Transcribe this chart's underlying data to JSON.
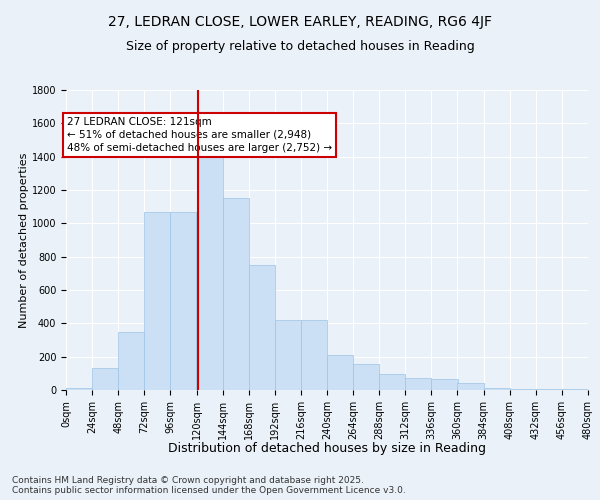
{
  "title": "27, LEDRAN CLOSE, LOWER EARLEY, READING, RG6 4JF",
  "subtitle": "Size of property relative to detached houses in Reading",
  "xlabel": "Distribution of detached houses by size in Reading",
  "ylabel": "Number of detached properties",
  "bar_color": "#cce0f5",
  "bar_edge_color": "#9dc3e6",
  "background_color": "#eaf1f8",
  "grid_color": "#ffffff",
  "bins_left": [
    0,
    24,
    48,
    72,
    96,
    120,
    144,
    168,
    192,
    216,
    240,
    264,
    288,
    312,
    336,
    360,
    384,
    408,
    432,
    456
  ],
  "bar_heights": [
    10,
    130,
    350,
    1070,
    1070,
    1500,
    1150,
    750,
    420,
    420,
    210,
    155,
    95,
    70,
    65,
    45,
    10,
    5,
    5,
    5
  ],
  "bin_width": 24,
  "vline_x": 121,
  "vline_color": "#cc0000",
  "annotation_text": "27 LEDRAN CLOSE: 121sqm\n← 51% of detached houses are smaller (2,948)\n48% of semi-detached houses are larger (2,752) →",
  "annotation_box_color": "#ffffff",
  "annotation_box_edge_color": "#cc0000",
  "ylim": [
    0,
    1800
  ],
  "xlim": [
    0,
    480
  ],
  "yticks": [
    0,
    200,
    400,
    600,
    800,
    1000,
    1200,
    1400,
    1600,
    1800
  ],
  "xtick_labels": [
    "0sqm",
    "24sqm",
    "48sqm",
    "72sqm",
    "96sqm",
    "120sqm",
    "144sqm",
    "168sqm",
    "192sqm",
    "216sqm",
    "240sqm",
    "264sqm",
    "288sqm",
    "312sqm",
    "336sqm",
    "360sqm",
    "384sqm",
    "408sqm",
    "432sqm",
    "456sqm",
    "480sqm"
  ],
  "xtick_positions": [
    0,
    24,
    48,
    72,
    96,
    120,
    144,
    168,
    192,
    216,
    240,
    264,
    288,
    312,
    336,
    360,
    384,
    408,
    432,
    456,
    480
  ],
  "footnote": "Contains HM Land Registry data © Crown copyright and database right 2025.\nContains public sector information licensed under the Open Government Licence v3.0.",
  "title_fontsize": 10,
  "subtitle_fontsize": 9,
  "xlabel_fontsize": 9,
  "ylabel_fontsize": 8,
  "tick_fontsize": 7,
  "annotation_fontsize": 7.5,
  "footnote_fontsize": 6.5
}
